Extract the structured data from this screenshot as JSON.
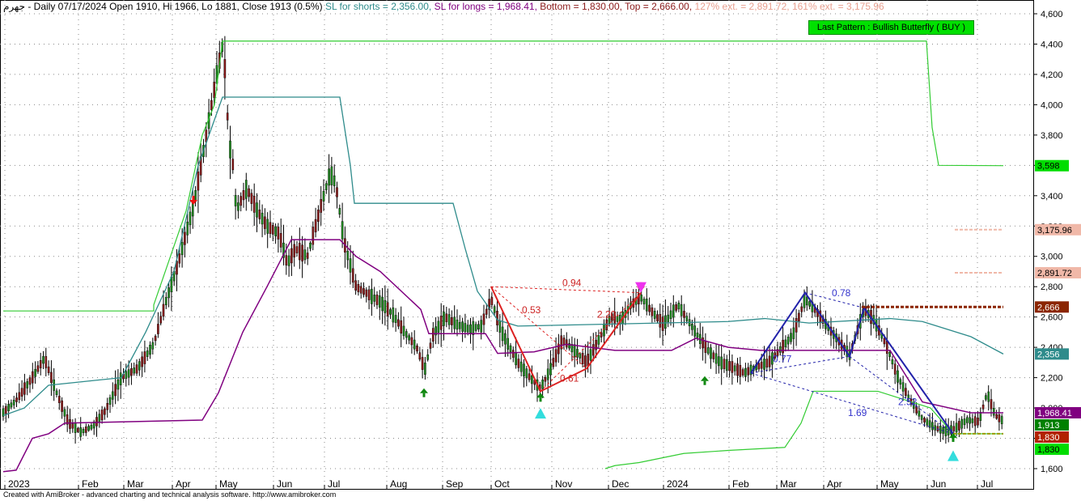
{
  "header": {
    "symbol": "جهرم",
    "main": "- Daily 07/17/2024 Open 1910, Hi 1966, Lo 1881, Close 1913 (0.5%)",
    "sl_shorts": "SL for shorts  = 2,356.00,",
    "sl_longs": "SL for longs  = 1,968.41,",
    "bottom_top": "Bottom = 1,830.00, Top = 2,666.00,",
    "ext127": "127% ext. = 2,891.72,",
    "ext161": "161% ext. = 3,175.96",
    "colors": {
      "main": "#000000",
      "sl_shorts": "#2e8b8b",
      "sl_longs": "#800080",
      "bottom_top": "#8b1a1a",
      "ext127": "#e8a090",
      "ext161": "#e8a090"
    }
  },
  "pattern_label": "Last Pattern : Bullish Butterfly ( BUY )",
  "footer": "Created with AmiBroker - advanced charting and technical analysis software. http://www.amibroker.com",
  "chart_data": {
    "type": "candlestick",
    "ylim": [
      1530,
      4650
    ],
    "y_ticks": [
      1600,
      1800,
      2000,
      2200,
      2400,
      2600,
      2800,
      3000,
      3200,
      3400,
      3600,
      3800,
      4000,
      4200,
      4400,
      4600
    ],
    "y_tick_labels": [
      "1,600",
      "1,800",
      "2,000",
      "2,200",
      "2,400",
      "2,600",
      "2,800",
      "3,000",
      "3,200",
      "3,400",
      "3,600",
      "3,800",
      "4,000",
      "4,200",
      "4,400",
      "4,600"
    ],
    "x_labels": [
      "2023",
      "Feb",
      "Mar",
      "Apr",
      "May",
      "Jun",
      "Jul",
      "Aug",
      "Sep",
      "Oct",
      "Nov",
      "Dec",
      "2024",
      "Feb",
      "Mar",
      "Apr",
      "May",
      "Jun",
      "Jul"
    ],
    "price_path": [
      [
        0,
        1950
      ],
      [
        6,
        1980
      ],
      [
        20,
        2050
      ],
      [
        40,
        2200
      ],
      [
        55,
        2330
      ],
      [
        70,
        2100
      ],
      [
        85,
        1900
      ],
      [
        100,
        1840
      ],
      [
        115,
        1880
      ],
      [
        130,
        1980
      ],
      [
        150,
        2200
      ],
      [
        170,
        2260
      ],
      [
        190,
        2420
      ],
      [
        205,
        2700
      ],
      [
        220,
        2950
      ],
      [
        240,
        3350
      ],
      [
        255,
        3800
      ],
      [
        268,
        4200
      ],
      [
        276,
        4420
      ],
      [
        283,
        3750
      ],
      [
        288,
        3600
      ],
      [
        292,
        3300
      ],
      [
        305,
        3450
      ],
      [
        318,
        3300
      ],
      [
        330,
        3200
      ],
      [
        345,
        3150
      ],
      [
        355,
        2950
      ],
      [
        365,
        3050
      ],
      [
        380,
        3000
      ],
      [
        395,
        3300
      ],
      [
        408,
        3550
      ],
      [
        415,
        3480
      ],
      [
        425,
        3100
      ],
      [
        440,
        2800
      ],
      [
        455,
        2750
      ],
      [
        470,
        2700
      ],
      [
        485,
        2620
      ],
      [
        500,
        2500
      ],
      [
        515,
        2400
      ],
      [
        525,
        2250
      ],
      [
        535,
        2480
      ],
      [
        550,
        2600
      ],
      [
        565,
        2550
      ],
      [
        580,
        2520
      ],
      [
        595,
        2540
      ],
      [
        607,
        2720
      ],
      [
        620,
        2500
      ],
      [
        640,
        2300
      ],
      [
        655,
        2200
      ],
      [
        668,
        2130
      ],
      [
        680,
        2250
      ],
      [
        695,
        2450
      ],
      [
        710,
        2380
      ],
      [
        725,
        2300
      ],
      [
        740,
        2450
      ],
      [
        755,
        2600
      ],
      [
        768,
        2580
      ],
      [
        780,
        2680
      ],
      [
        792,
        2730
      ],
      [
        805,
        2640
      ],
      [
        820,
        2550
      ],
      [
        838,
        2680
      ],
      [
        850,
        2580
      ],
      [
        862,
        2480
      ],
      [
        875,
        2380
      ],
      [
        890,
        2300
      ],
      [
        905,
        2270
      ],
      [
        920,
        2230
      ],
      [
        935,
        2270
      ],
      [
        950,
        2300
      ],
      [
        965,
        2390
      ],
      [
        980,
        2480
      ],
      [
        995,
        2720
      ],
      [
        1010,
        2630
      ],
      [
        1025,
        2520
      ],
      [
        1040,
        2420
      ],
      [
        1050,
        2350
      ],
      [
        1068,
        2650
      ],
      [
        1080,
        2580
      ],
      [
        1095,
        2420
      ],
      [
        1110,
        2200
      ],
      [
        1125,
        2050
      ],
      [
        1140,
        1930
      ],
      [
        1155,
        1870
      ],
      [
        1170,
        1845
      ],
      [
        1182,
        1870
      ],
      [
        1195,
        1920
      ],
      [
        1210,
        1910
      ],
      [
        1220,
        2100
      ],
      [
        1230,
        1950
      ],
      [
        1240,
        1913
      ]
    ],
    "annotations": {
      "ratios": [
        {
          "text": "0.94",
          "color": "#cc2222"
        },
        {
          "text": "0.53",
          "color": "#cc2222"
        },
        {
          "text": "2.20",
          "color": "#cc2222"
        },
        {
          "text": "0.61",
          "color": "#cc2222"
        },
        {
          "text": "0.78",
          "color": "#3333cc"
        },
        {
          "text": "0.77",
          "color": "#3333cc"
        },
        {
          "text": "2.52",
          "color": "#3333cc"
        },
        {
          "text": "1.69",
          "color": "#3333cc"
        }
      ],
      "price_labels": [
        {
          "text": "3,598",
          "value": 3598,
          "bg": "#00dd00",
          "fg": "#000000"
        },
        {
          "text": "3,175.96",
          "value": 3175.96,
          "bg": "#f0b8a8",
          "fg": "#000000"
        },
        {
          "text": "2,891.72",
          "value": 2891.72,
          "bg": "#f0b8a8",
          "fg": "#000000"
        },
        {
          "text": "2,666",
          "value": 2666,
          "bg": "#8b2500",
          "fg": "#ffffff"
        },
        {
          "text": "2,356",
          "value": 2356,
          "bg": "#2e8b8b",
          "fg": "#ffffff"
        },
        {
          "text": "1,968.41",
          "value": 1968.41,
          "bg": "#800080",
          "fg": "#ffffff"
        },
        {
          "text": "1,913",
          "value": 1913,
          "bg": "#008000",
          "fg": "#ffffff"
        },
        {
          "text": "1,830",
          "value": 1830,
          "bg": "#b22200",
          "fg": "#ffffff"
        },
        {
          "text": "1,830",
          "value": 1830,
          "bg": "#00dd00",
          "fg": "#000000"
        }
      ]
    }
  }
}
